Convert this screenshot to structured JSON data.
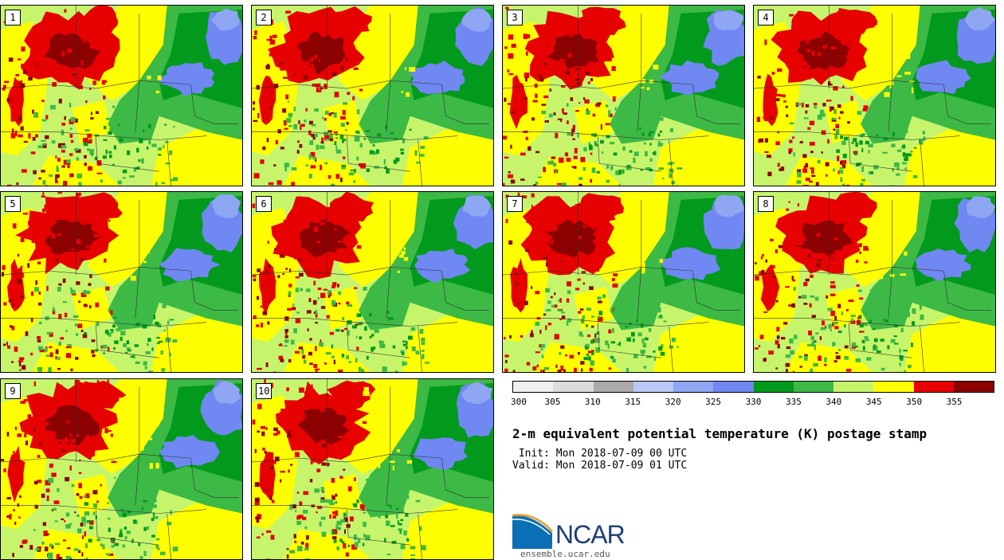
{
  "members": [
    "1",
    "2",
    "3",
    "4",
    "5",
    "6",
    "7",
    "8",
    "9",
    "10"
  ],
  "colorbar": {
    "colors": [
      "#f0f0f0",
      "#dcdcdc",
      "#aaaaaa",
      "#b9c9f5",
      "#8fa7f3",
      "#7088f2",
      "#029a1c",
      "#3db945",
      "#c6f56c",
      "#ffff00",
      "#e60000",
      "#8c0000"
    ],
    "ticks": [
      "300",
      "305",
      "310",
      "315",
      "320",
      "325",
      "330",
      "335",
      "340",
      "345",
      "350",
      "355"
    ]
  },
  "title": "2-m equivalent potential temperature (K) postage stamp",
  "init": " Init: Mon 2018-07-09 00 UTC",
  "valid": "Valid: Mon 2018-07-09 01 UTC",
  "logo": {
    "name": "NCAR",
    "url": "ensemble.ucar.edu",
    "color": "#1d3f72",
    "icon": "ncar-logo-icon"
  }
}
